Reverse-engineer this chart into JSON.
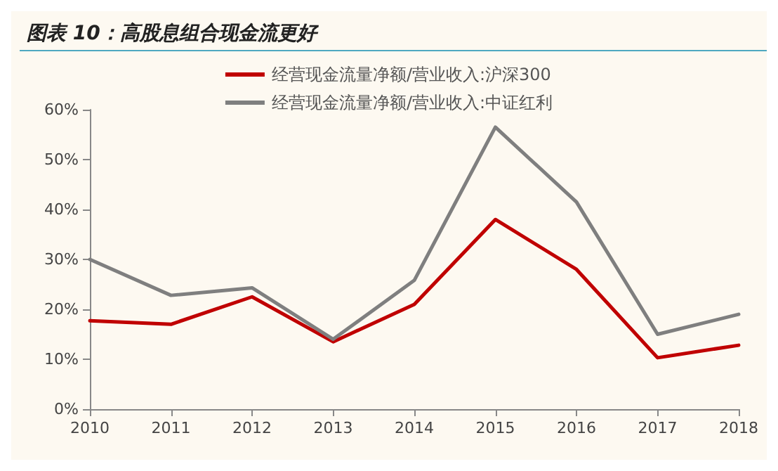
{
  "chart_data": {
    "type": "line",
    "title": "图表 10：高股息组合现金流更好",
    "categories": [
      "2010",
      "2011",
      "2012",
      "2013",
      "2014",
      "2015",
      "2016",
      "2017",
      "2018"
    ],
    "series": [
      {
        "name": "经营现金流量净额/营业收入:沪深300",
        "color": "#c00000",
        "values": [
          17.7,
          17,
          22.5,
          13.5,
          21,
          38,
          28,
          10.3,
          12.8
        ]
      },
      {
        "name": "经营现金流量净额/营业收入:中证红利",
        "color": "#7f7f7f",
        "values": [
          30,
          22.8,
          24.3,
          14,
          25.8,
          56.5,
          41.5,
          15,
          19
        ]
      }
    ],
    "ylim": [
      0,
      60
    ],
    "yticks": [
      {
        "value": 0,
        "label": "0%"
      },
      {
        "value": 10,
        "label": "10%"
      },
      {
        "value": 20,
        "label": "20%"
      },
      {
        "value": 30,
        "label": "30%"
      },
      {
        "value": 40,
        "label": "40%"
      },
      {
        "value": 50,
        "label": "50%"
      },
      {
        "value": 60,
        "label": "60%"
      }
    ],
    "grid": false,
    "legend": "top",
    "marker": "none",
    "line_style": "solid"
  }
}
